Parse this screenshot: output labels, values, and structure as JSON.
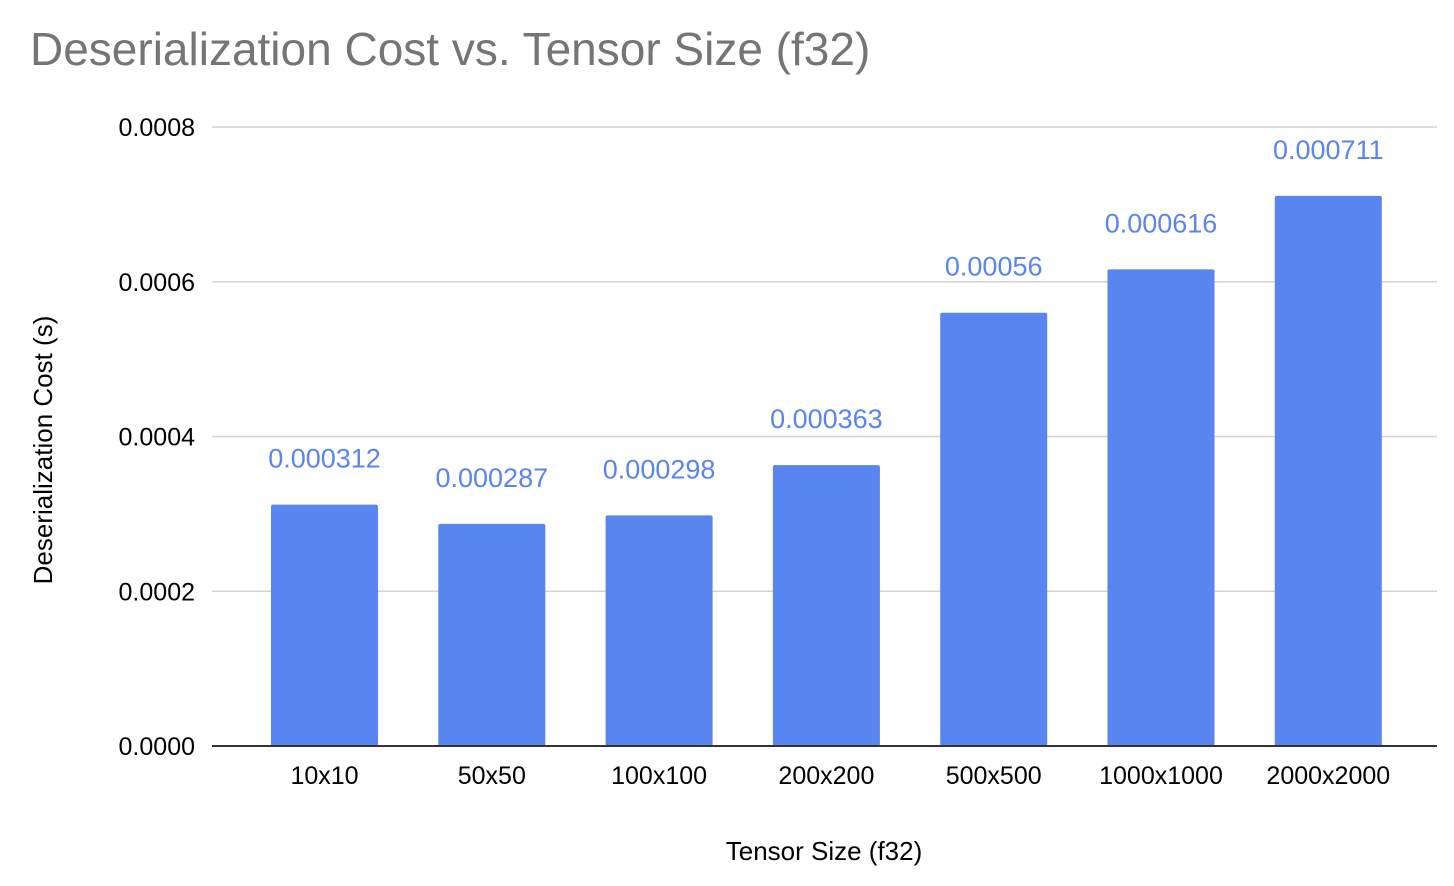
{
  "chart_data": {
    "type": "bar",
    "title": "Deserialization Cost vs. Tensor Size (f32)",
    "xlabel": "Tensor Size (f32)",
    "ylabel": "Deserialization Cost (s)",
    "categories": [
      "10x10",
      "50x50",
      "100x100",
      "200x200",
      "500x500",
      "1000x1000",
      "2000x2000"
    ],
    "values": [
      0.000312,
      0.000287,
      0.000298,
      0.000363,
      0.00056,
      0.000616,
      0.000711
    ],
    "data_labels": [
      "0.000312",
      "0.000287",
      "0.000298",
      "0.000363",
      "0.00056",
      "0.000616",
      "0.000711"
    ],
    "ylim": [
      0,
      0.0008
    ],
    "yticks": [
      0,
      0.0002,
      0.0004,
      0.0006,
      0.0008
    ],
    "ytick_labels": [
      "0.0000",
      "0.0002",
      "0.0004",
      "0.0006",
      "0.0008"
    ],
    "grid": true,
    "legend": "none",
    "colors": {
      "bar": "#5885ef",
      "data_label": "#5885ef",
      "title": "#757575",
      "grid": "#d3d3d3",
      "axis": "#333333",
      "text": "#000000"
    }
  }
}
